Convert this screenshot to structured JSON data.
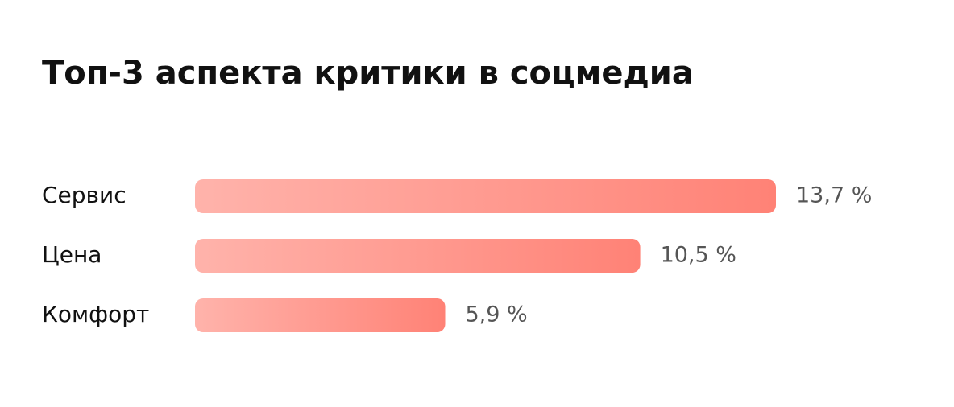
{
  "chart_data": {
    "type": "bar",
    "orientation": "horizontal",
    "title": "Топ-3 аспекта критики в соцмедиа",
    "categories": [
      "Сервис",
      "Цена",
      "Комфорт"
    ],
    "values": [
      13.7,
      10.5,
      5.9
    ],
    "value_labels": [
      "13,7 %",
      "10,5 %",
      "5,9 %"
    ],
    "colors": [
      "#ffb3ab",
      "#ff8276"
    ]
  }
}
